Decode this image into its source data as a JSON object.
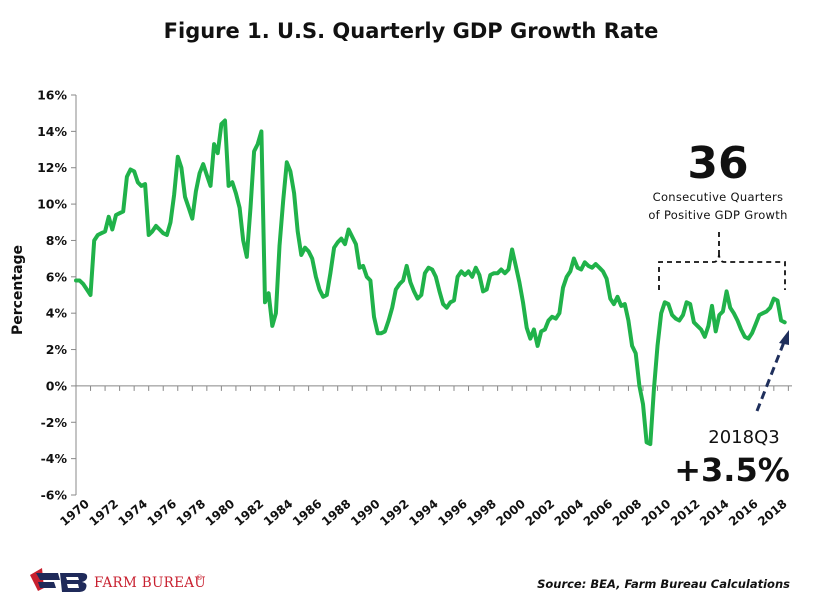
{
  "chart_data": {
    "type": "line",
    "title": "Figure 1. U.S. Quarterly GDP Growth Rate",
    "ylabel": "Percentage",
    "xlabel": "",
    "ylim": [
      -6,
      16
    ],
    "xlim": [
      1970,
      2019.25
    ],
    "y_ticks": [
      "16%",
      "14%",
      "12%",
      "10%",
      "8%",
      "6%",
      "4%",
      "2%",
      "0%",
      "-2%",
      "-4%",
      "-6%"
    ],
    "y_tick_values": [
      16,
      14,
      12,
      10,
      8,
      6,
      4,
      2,
      0,
      -2,
      -4,
      -6
    ],
    "x_ticks": [
      "1970",
      "1972",
      "1974",
      "1976",
      "1978",
      "1980",
      "1982",
      "1984",
      "1986",
      "1988",
      "1990",
      "1992",
      "1994",
      "1996",
      "1998",
      "2000",
      "2002",
      "2004",
      "2006",
      "2008",
      "2010",
      "2012",
      "2014",
      "2016",
      "2018"
    ],
    "grid": false,
    "legend": "none",
    "series_color": "#20b24a",
    "series": [
      {
        "points": [
          [
            1970.0,
            5.8
          ],
          [
            1970.25,
            5.8
          ],
          [
            1970.5,
            5.6
          ],
          [
            1970.75,
            5.3
          ],
          [
            1971.0,
            5.0
          ],
          [
            1971.25,
            8.0
          ],
          [
            1971.5,
            8.3
          ],
          [
            1971.75,
            8.4
          ],
          [
            1972.0,
            8.5
          ],
          [
            1972.25,
            9.3
          ],
          [
            1972.5,
            8.6
          ],
          [
            1972.75,
            9.4
          ],
          [
            1973.0,
            9.5
          ],
          [
            1973.25,
            9.6
          ],
          [
            1973.5,
            11.5
          ],
          [
            1973.75,
            11.9
          ],
          [
            1974.0,
            11.8
          ],
          [
            1974.25,
            11.2
          ],
          [
            1974.5,
            11.0
          ],
          [
            1974.75,
            11.1
          ],
          [
            1975.0,
            8.3
          ],
          [
            1975.25,
            8.5
          ],
          [
            1975.5,
            8.8
          ],
          [
            1975.75,
            8.6
          ],
          [
            1976.0,
            8.4
          ],
          [
            1976.25,
            8.3
          ],
          [
            1976.5,
            9.0
          ],
          [
            1976.75,
            10.5
          ],
          [
            1977.0,
            12.6
          ],
          [
            1977.25,
            12.0
          ],
          [
            1977.5,
            10.4
          ],
          [
            1977.75,
            9.8
          ],
          [
            1978.0,
            9.2
          ],
          [
            1978.25,
            10.7
          ],
          [
            1978.5,
            11.7
          ],
          [
            1978.75,
            12.2
          ],
          [
            1979.0,
            11.6
          ],
          [
            1979.25,
            11.0
          ],
          [
            1979.5,
            13.3
          ],
          [
            1979.75,
            12.8
          ],
          [
            1980.0,
            14.4
          ],
          [
            1980.25,
            14.6
          ],
          [
            1980.5,
            11.0
          ],
          [
            1980.75,
            11.2
          ],
          [
            1981.0,
            10.6
          ],
          [
            1981.25,
            9.8
          ],
          [
            1981.5,
            8.0
          ],
          [
            1981.75,
            7.1
          ],
          [
            1982.0,
            9.8
          ],
          [
            1982.25,
            12.9
          ],
          [
            1982.5,
            13.3
          ],
          [
            1982.75,
            14.0
          ],
          [
            1983.0,
            4.6
          ],
          [
            1983.25,
            5.1
          ],
          [
            1983.5,
            3.3
          ],
          [
            1983.75,
            4.0
          ],
          [
            1984.0,
            7.7
          ],
          [
            1984.25,
            10.2
          ],
          [
            1984.5,
            12.3
          ],
          [
            1984.75,
            11.8
          ],
          [
            1985.0,
            10.6
          ],
          [
            1985.25,
            8.5
          ],
          [
            1985.5,
            7.2
          ],
          [
            1985.75,
            7.6
          ],
          [
            1986.0,
            7.4
          ],
          [
            1986.25,
            7.0
          ],
          [
            1986.5,
            6.0
          ],
          [
            1986.75,
            5.3
          ],
          [
            1987.0,
            4.9
          ],
          [
            1987.25,
            5.0
          ],
          [
            1987.5,
            6.2
          ],
          [
            1987.75,
            7.6
          ],
          [
            1988.0,
            7.9
          ],
          [
            1988.25,
            8.1
          ],
          [
            1988.5,
            7.8
          ],
          [
            1988.75,
            8.6
          ],
          [
            1989.0,
            8.2
          ],
          [
            1989.25,
            7.8
          ],
          [
            1989.5,
            6.5
          ],
          [
            1989.75,
            6.6
          ],
          [
            1990.0,
            6.0
          ],
          [
            1990.25,
            5.8
          ],
          [
            1990.5,
            3.8
          ],
          [
            1990.75,
            2.9
          ],
          [
            1991.0,
            2.9
          ],
          [
            1991.25,
            3.0
          ],
          [
            1991.5,
            3.6
          ],
          [
            1991.75,
            4.3
          ],
          [
            1992.0,
            5.3
          ],
          [
            1992.25,
            5.6
          ],
          [
            1992.5,
            5.8
          ],
          [
            1992.75,
            6.6
          ],
          [
            1993.0,
            5.7
          ],
          [
            1993.25,
            5.2
          ],
          [
            1993.5,
            4.8
          ],
          [
            1993.75,
            5.0
          ],
          [
            1994.0,
            6.2
          ],
          [
            1994.25,
            6.5
          ],
          [
            1994.5,
            6.4
          ],
          [
            1994.75,
            6.0
          ],
          [
            1995.0,
            5.2
          ],
          [
            1995.25,
            4.5
          ],
          [
            1995.5,
            4.3
          ],
          [
            1995.75,
            4.6
          ],
          [
            1996.0,
            4.7
          ],
          [
            1996.25,
            6.0
          ],
          [
            1996.5,
            6.3
          ],
          [
            1996.75,
            6.1
          ],
          [
            1997.0,
            6.3
          ],
          [
            1997.25,
            6.0
          ],
          [
            1997.5,
            6.5
          ],
          [
            1997.75,
            6.1
          ],
          [
            1998.0,
            5.2
          ],
          [
            1998.25,
            5.3
          ],
          [
            1998.5,
            6.1
          ],
          [
            1998.75,
            6.2
          ],
          [
            1999.0,
            6.2
          ],
          [
            1999.25,
            6.4
          ],
          [
            1999.5,
            6.2
          ],
          [
            1999.75,
            6.4
          ],
          [
            2000.0,
            7.5
          ],
          [
            2000.25,
            6.6
          ],
          [
            2000.5,
            5.7
          ],
          [
            2000.75,
            4.6
          ],
          [
            2001.0,
            3.2
          ],
          [
            2001.25,
            2.6
          ],
          [
            2001.5,
            3.1
          ],
          [
            2001.75,
            2.2
          ],
          [
            2002.0,
            3.0
          ],
          [
            2002.25,
            3.1
          ],
          [
            2002.5,
            3.6
          ],
          [
            2002.75,
            3.8
          ],
          [
            2003.0,
            3.7
          ],
          [
            2003.25,
            4.0
          ],
          [
            2003.5,
            5.4
          ],
          [
            2003.75,
            6.0
          ],
          [
            2004.0,
            6.3
          ],
          [
            2004.25,
            7.0
          ],
          [
            2004.5,
            6.5
          ],
          [
            2004.75,
            6.4
          ],
          [
            2005.0,
            6.8
          ],
          [
            2005.25,
            6.6
          ],
          [
            2005.5,
            6.5
          ],
          [
            2005.75,
            6.7
          ],
          [
            2006.0,
            6.5
          ],
          [
            2006.25,
            6.3
          ],
          [
            2006.5,
            5.9
          ],
          [
            2006.75,
            4.8
          ],
          [
            2007.0,
            4.5
          ],
          [
            2007.25,
            4.9
          ],
          [
            2007.5,
            4.4
          ],
          [
            2007.75,
            4.5
          ],
          [
            2008.0,
            3.6
          ],
          [
            2008.25,
            2.2
          ],
          [
            2008.5,
            1.8
          ],
          [
            2008.75,
            0.0
          ],
          [
            2009.0,
            -1.0
          ],
          [
            2009.25,
            -3.1
          ],
          [
            2009.5,
            -3.2
          ],
          [
            2009.75,
            -0.2
          ],
          [
            2010.0,
            2.2
          ],
          [
            2010.25,
            4.0
          ],
          [
            2010.5,
            4.6
          ],
          [
            2010.75,
            4.5
          ],
          [
            2011.0,
            3.9
          ],
          [
            2011.25,
            3.7
          ],
          [
            2011.5,
            3.6
          ],
          [
            2011.75,
            3.9
          ],
          [
            2012.0,
            4.6
          ],
          [
            2012.25,
            4.5
          ],
          [
            2012.5,
            3.5
          ],
          [
            2012.75,
            3.3
          ],
          [
            2013.0,
            3.1
          ],
          [
            2013.25,
            2.7
          ],
          [
            2013.5,
            3.3
          ],
          [
            2013.75,
            4.4
          ],
          [
            2014.0,
            3.0
          ],
          [
            2014.25,
            3.9
          ],
          [
            2014.5,
            4.1
          ],
          [
            2014.75,
            5.2
          ],
          [
            2015.0,
            4.3
          ],
          [
            2015.25,
            4.0
          ],
          [
            2015.5,
            3.6
          ],
          [
            2015.75,
            3.1
          ],
          [
            2016.0,
            2.7
          ],
          [
            2016.25,
            2.6
          ],
          [
            2016.5,
            2.9
          ],
          [
            2016.75,
            3.4
          ],
          [
            2017.0,
            3.9
          ],
          [
            2017.25,
            4.0
          ],
          [
            2017.5,
            4.1
          ],
          [
            2017.75,
            4.3
          ],
          [
            2018.0,
            4.8
          ],
          [
            2018.25,
            4.7
          ],
          [
            2018.5,
            3.6
          ],
          [
            2018.75,
            3.5
          ]
        ]
      }
    ],
    "annotations": {
      "count": "36",
      "count_line1": "Consecutive Quarters",
      "count_line2": "of Positive GDP Growth",
      "latest_label": "2018Q3",
      "latest_value": "+3.5%"
    }
  },
  "footer": {
    "brand": "FARM BUREAU",
    "brand_mark": "®",
    "source": "Source: BEA, Farm Bureau Calculations"
  }
}
